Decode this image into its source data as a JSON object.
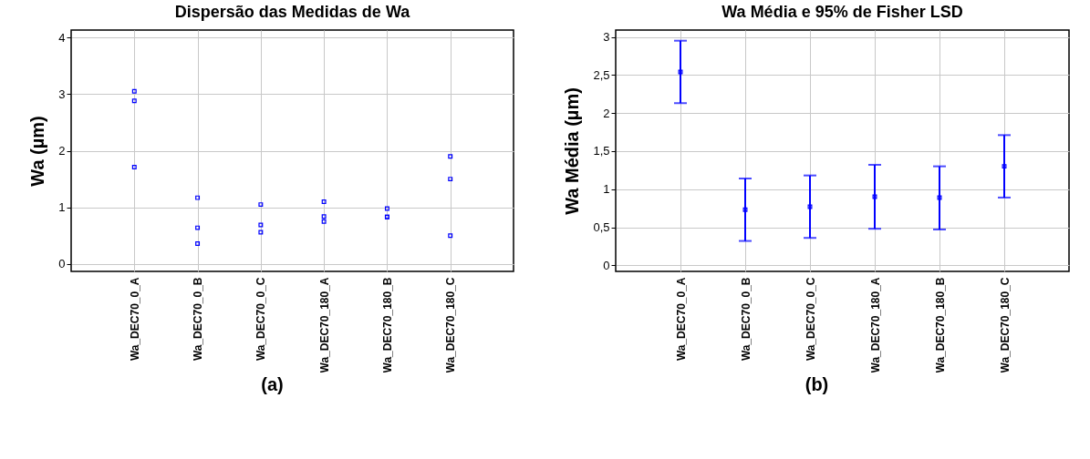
{
  "chart_data": [
    {
      "type": "scatter",
      "title": "Dispersão das Medidas de Wa",
      "ylabel": "Wa (µm)",
      "categories": [
        "Wa_DEC70_0_A",
        "Wa_DEC70_0_B",
        "Wa_DEC70_0_C",
        "Wa_DEC70_180_A",
        "Wa_DEC70_180_B",
        "Wa_DEC70_180_C"
      ],
      "series": [
        {
          "color": "#0000ff",
          "x": [
            "Wa_DEC70_0_A",
            "Wa_DEC70_0_A",
            "Wa_DEC70_0_A",
            "Wa_DEC70_0_B",
            "Wa_DEC70_0_B",
            "Wa_DEC70_0_B",
            "Wa_DEC70_0_C",
            "Wa_DEC70_0_C",
            "Wa_DEC70_0_C",
            "Wa_DEC70_180_A",
            "Wa_DEC70_180_A",
            "Wa_DEC70_180_A",
            "Wa_DEC70_180_B",
            "Wa_DEC70_180_B",
            "Wa_DEC70_180_B",
            "Wa_DEC70_180_C",
            "Wa_DEC70_180_C",
            "Wa_DEC70_180_C"
          ],
          "values": [
            3.05,
            2.88,
            1.71,
            1.17,
            0.64,
            0.36,
            1.05,
            0.69,
            0.56,
            1.1,
            0.84,
            0.75,
            0.98,
            0.83,
            0.83,
            1.9,
            1.5,
            0.5
          ]
        }
      ],
      "ylim": [
        -0.13,
        4.13
      ],
      "yticks": [
        0,
        1,
        2,
        3,
        4
      ],
      "grid": true,
      "marker": "square",
      "annotations": [
        "(a)"
      ]
    },
    {
      "type": "scatter",
      "title": "Wa Média e 95% de Fisher LSD",
      "ylabel": "Wa Média (µm)",
      "categories": [
        "Wa_DEC70_0_A",
        "Wa_DEC70_0_B",
        "Wa_DEC70_0_C",
        "Wa_DEC70_180_A",
        "Wa_DEC70_180_B",
        "Wa_DEC70_180_C"
      ],
      "values": [
        2.54,
        0.73,
        0.77,
        0.9,
        0.89,
        1.3
      ],
      "errors": [
        [
          2.13,
          2.95
        ],
        [
          0.32,
          1.14
        ],
        [
          0.36,
          1.18
        ],
        [
          0.48,
          1.32
        ],
        [
          0.47,
          1.3
        ],
        [
          0.89,
          1.71
        ]
      ],
      "color": "#0000ff",
      "ylim": [
        -0.08,
        3.09
      ],
      "yticks": [
        0,
        {
          "value": 0.5,
          "label": "0,5"
        },
        1,
        {
          "value": 1.5,
          "label": "1,5"
        },
        2,
        {
          "value": 2.5,
          "label": "2,5"
        },
        3
      ],
      "grid": true,
      "marker": "square",
      "annotations": [
        "(b)"
      ]
    }
  ]
}
